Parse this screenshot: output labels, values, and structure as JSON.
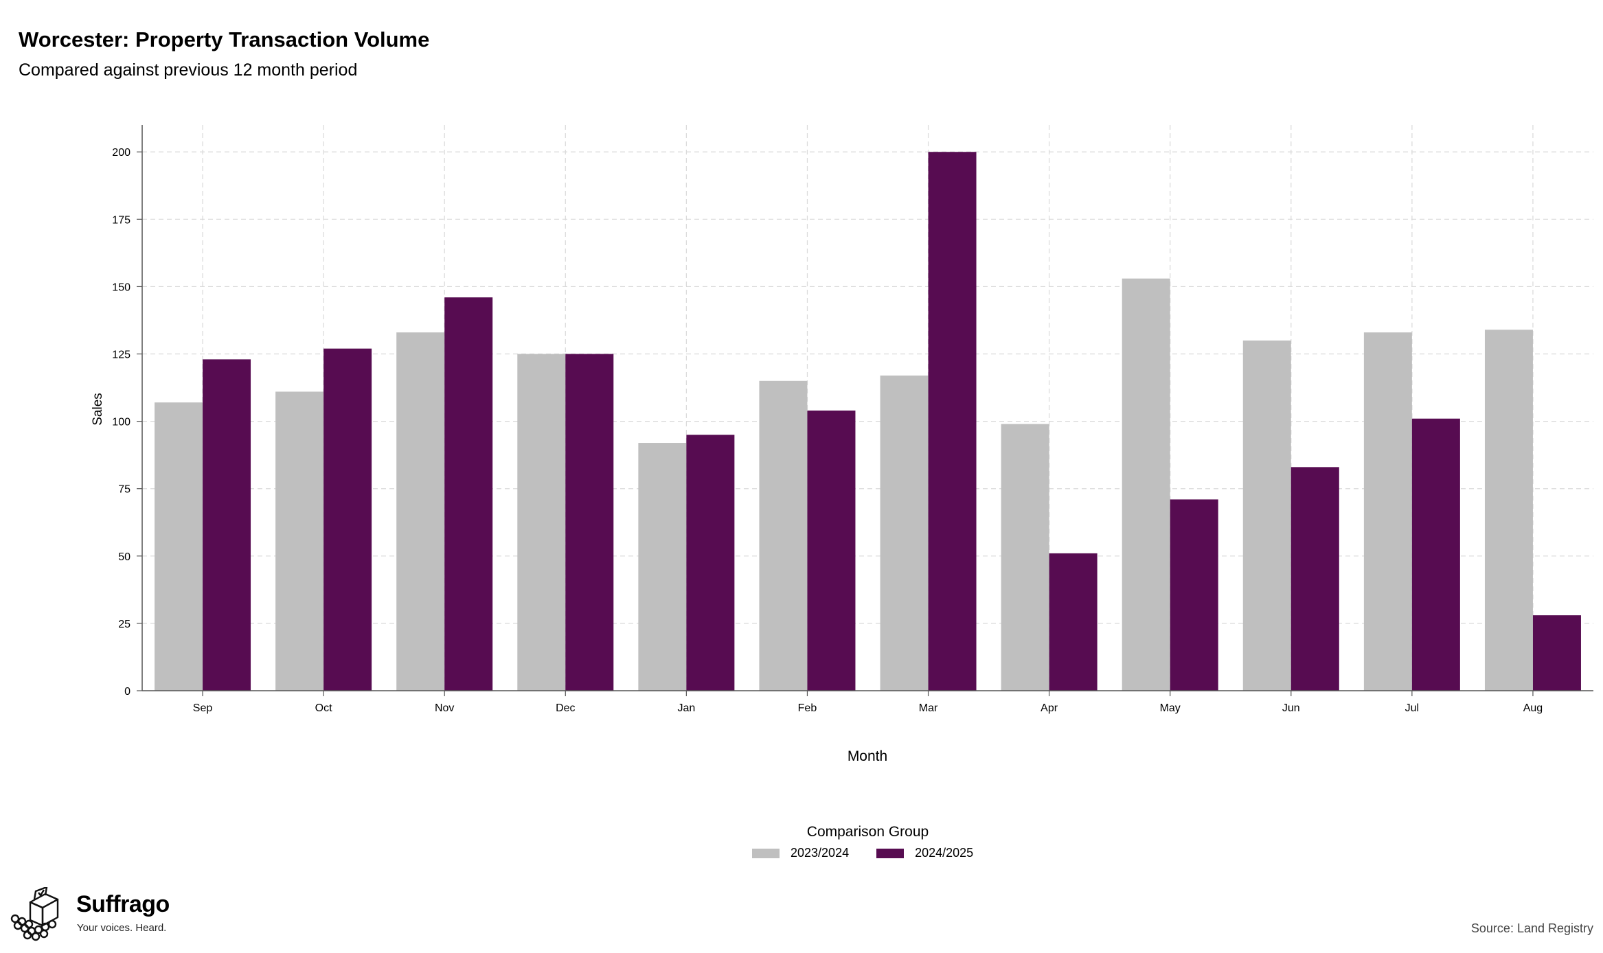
{
  "header": {
    "title": "Worcester: Property Transaction Volume",
    "subtitle": "Compared against previous 12 month period"
  },
  "chart_data": {
    "type": "bar",
    "title": "Worcester: Property Transaction Volume",
    "subtitle": "Compared against previous 12 month period",
    "xlabel": "Month",
    "ylabel": "Sales",
    "ylim": [
      0,
      210
    ],
    "yticks": [
      0,
      25,
      50,
      75,
      100,
      125,
      150,
      175,
      200
    ],
    "grid": true,
    "legend_position": "bottom",
    "legend_title": "Comparison Group",
    "categories": [
      "Sep",
      "Oct",
      "Nov",
      "Dec",
      "Jan",
      "Feb",
      "Mar",
      "Apr",
      "May",
      "Jun",
      "Jul",
      "Aug"
    ],
    "series": [
      {
        "name": "2023/2024",
        "color": "#bfbfbf",
        "values": [
          107,
          111,
          133,
          125,
          92,
          115,
          117,
          99,
          153,
          130,
          133,
          134
        ]
      },
      {
        "name": "2024/2025",
        "color": "#570c51",
        "values": [
          123,
          127,
          146,
          125,
          95,
          104,
          200,
          51,
          71,
          83,
          101,
          28
        ]
      }
    ]
  },
  "legend": {
    "title": "Comparison Group",
    "items": [
      {
        "label": "2023/2024",
        "color": "#bfbfbf"
      },
      {
        "label": "2024/2025",
        "color": "#570c51"
      }
    ]
  },
  "branding": {
    "name": "Suffrago",
    "tagline": "Your voices. Heard.",
    "logo_icon": "ballot-box-icon"
  },
  "footer": {
    "source": "Source: Land Registry"
  }
}
